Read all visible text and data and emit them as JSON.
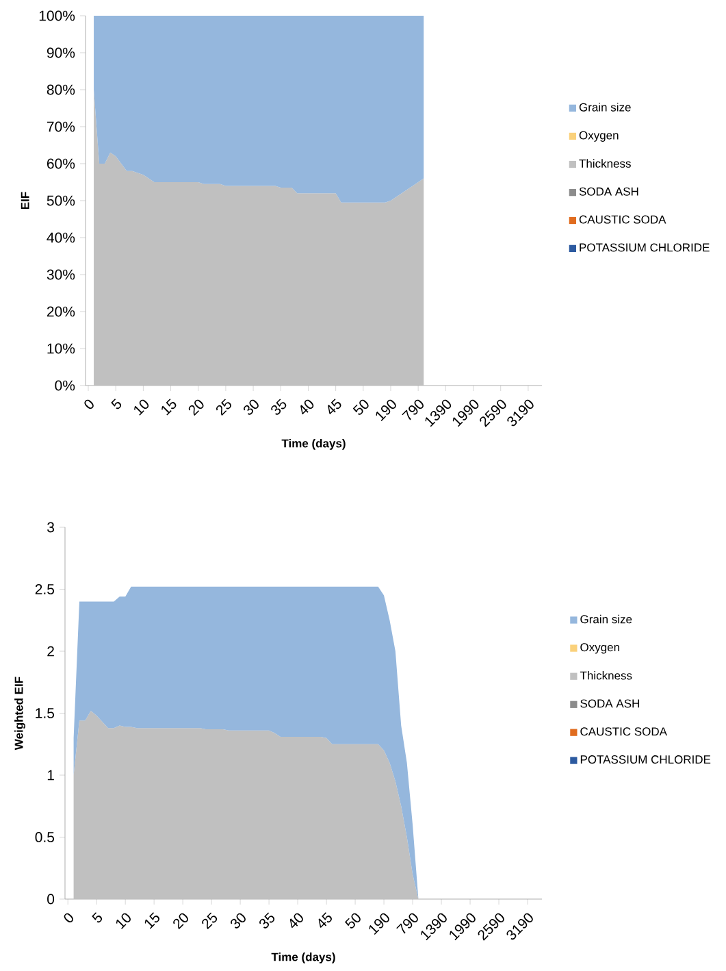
{
  "chart_data": [
    {
      "type": "area",
      "stacked": true,
      "xlabel": "Time (days)",
      "ylabel": "EIF",
      "legend": "right",
      "categories": [
        "0",
        null,
        null,
        null,
        null,
        "5",
        null,
        null,
        null,
        null,
        "10",
        null,
        null,
        null,
        null,
        "15",
        null,
        null,
        null,
        null,
        "20",
        null,
        null,
        null,
        null,
        "25",
        null,
        null,
        null,
        null,
        "30",
        null,
        null,
        null,
        null,
        "35",
        null,
        null,
        null,
        null,
        "40",
        null,
        null,
        null,
        null,
        "45",
        null,
        null,
        null,
        null,
        "50",
        null,
        null,
        null,
        null,
        "190",
        null,
        null,
        null,
        null,
        "790",
        null,
        null,
        null,
        null,
        "1390",
        null,
        null,
        null,
        null,
        "1990",
        null,
        null,
        null,
        null,
        "2590",
        null,
        null,
        null,
        null,
        "3190",
        null,
        null
      ],
      "ylim": [
        0,
        100
      ],
      "yticks": [
        {
          "value": 0,
          "label": "0%"
        },
        {
          "value": 10,
          "label": "10%"
        },
        {
          "value": 20,
          "label": "20%"
        },
        {
          "value": 30,
          "label": "30%"
        },
        {
          "value": 40,
          "label": "40%"
        },
        {
          "value": 50,
          "label": "50%"
        },
        {
          "value": 60,
          "label": "60%"
        },
        {
          "value": 70,
          "label": "70%"
        },
        {
          "value": 80,
          "label": "80%"
        },
        {
          "value": 90,
          "label": "90%"
        },
        {
          "value": 100,
          "label": "100%"
        }
      ],
      "series": [
        {
          "name": "POTASSIUM CHLORIDE",
          "color": "#2c5aa0",
          "values": [
            null,
            null,
            null,
            null,
            null,
            null,
            null,
            null,
            null,
            null,
            null,
            null,
            null,
            null,
            null,
            null,
            null,
            null,
            null,
            null,
            null,
            null,
            null,
            null,
            null,
            null,
            null,
            null,
            null,
            null,
            null,
            null,
            null,
            null,
            null,
            null,
            null,
            null,
            null,
            null,
            null,
            null,
            null,
            null,
            null,
            null,
            null,
            null,
            null,
            null,
            null,
            null,
            null,
            null,
            null,
            null,
            null,
            null,
            null,
            null,
            null,
            null,
            null,
            null,
            null,
            null,
            null,
            null,
            null,
            null,
            null,
            null,
            null,
            null,
            null,
            null,
            null,
            null,
            null,
            null,
            null,
            null,
            null
          ]
        },
        {
          "name": "CAUSTIC SODA",
          "color": "#e06c1f",
          "values": [
            null,
            null,
            null,
            null,
            null,
            null,
            null,
            null,
            null,
            null,
            null,
            null,
            null,
            null,
            null,
            null,
            null,
            null,
            null,
            null,
            null,
            null,
            null,
            null,
            null,
            null,
            null,
            null,
            null,
            null,
            null,
            null,
            null,
            null,
            null,
            null,
            null,
            null,
            null,
            null,
            null,
            null,
            null,
            null,
            null,
            null,
            null,
            null,
            null,
            null,
            null,
            null,
            null,
            null,
            null,
            null,
            null,
            null,
            null,
            null,
            null,
            null,
            null,
            null,
            null,
            null,
            null,
            null,
            null,
            null,
            null,
            null,
            null,
            null,
            null,
            null,
            null,
            null,
            null,
            null,
            null,
            null,
            null
          ]
        },
        {
          "name": "SODA ASH",
          "color": "#8c8c8c",
          "values": [
            null,
            null,
            null,
            null,
            null,
            null,
            null,
            null,
            null,
            null,
            null,
            null,
            null,
            null,
            null,
            null,
            null,
            null,
            null,
            null,
            null,
            null,
            null,
            null,
            null,
            null,
            null,
            null,
            null,
            null,
            null,
            null,
            null,
            null,
            null,
            null,
            null,
            null,
            null,
            null,
            null,
            null,
            null,
            null,
            null,
            null,
            null,
            null,
            null,
            null,
            null,
            null,
            null,
            null,
            null,
            null,
            null,
            null,
            null,
            null,
            null,
            null,
            null,
            null,
            null,
            null,
            null,
            null,
            null,
            null,
            null,
            null,
            null,
            null,
            null,
            null,
            null,
            null,
            null,
            null,
            null,
            null,
            null
          ]
        },
        {
          "name": "Thickness",
          "color": "#c0c0c0",
          "values": [
            null,
            80,
            60,
            60,
            63,
            62,
            60,
            58,
            58,
            57.5,
            57,
            56,
            55,
            55,
            55,
            55,
            55,
            55,
            55,
            55,
            55,
            54.5,
            54.5,
            54.5,
            54.5,
            54,
            54,
            54,
            54,
            54,
            54,
            54,
            54,
            54,
            54,
            53.5,
            53.5,
            53.5,
            52,
            52,
            52,
            52,
            52,
            52,
            52,
            52,
            49.5,
            49.5,
            49.5,
            49.5,
            49.5,
            49.5,
            49.5,
            49.5,
            49.5,
            50,
            51,
            52,
            53,
            54,
            55,
            56,
            null,
            null,
            null,
            null,
            null,
            null,
            null,
            null,
            null,
            null,
            null,
            null,
            null,
            null,
            null,
            null,
            null,
            null,
            null,
            null,
            null
          ]
        },
        {
          "name": "Oxygen",
          "color": "#fad17b",
          "values": [
            null,
            null,
            null,
            null,
            null,
            null,
            null,
            null,
            null,
            null,
            null,
            null,
            null,
            null,
            null,
            null,
            null,
            null,
            null,
            null,
            null,
            null,
            null,
            null,
            null,
            null,
            null,
            null,
            null,
            null,
            null,
            null,
            null,
            null,
            null,
            null,
            null,
            null,
            null,
            null,
            null,
            null,
            null,
            null,
            null,
            null,
            null,
            null,
            null,
            null,
            null,
            null,
            null,
            null,
            null,
            null,
            null,
            null,
            null,
            null,
            null,
            null,
            null,
            null,
            null,
            null,
            null,
            null,
            null,
            null,
            null,
            null,
            null,
            null,
            null,
            null,
            null,
            null,
            null,
            null,
            null,
            null,
            null
          ]
        },
        {
          "name": "Grain size",
          "color": "#95b7dd",
          "values": [
            null,
            20,
            40,
            40,
            37,
            38,
            40,
            42,
            42,
            42.5,
            43,
            44,
            45,
            45,
            45,
            45,
            45,
            45,
            45,
            45,
            45,
            45.5,
            45.5,
            45.5,
            45.5,
            46,
            46,
            46,
            46,
            46,
            46,
            46,
            46,
            46,
            46,
            46.5,
            46.5,
            46.5,
            48,
            48,
            48,
            48,
            48,
            48,
            48,
            48,
            50.5,
            50.5,
            50.5,
            50.5,
            50.5,
            50.5,
            50.5,
            50.5,
            50.5,
            50,
            49,
            48,
            47,
            46,
            45,
            44,
            null,
            null,
            null,
            null,
            null,
            null,
            null,
            null,
            null,
            null,
            null,
            null,
            null,
            null,
            null,
            null,
            null,
            null,
            null,
            null,
            null
          ]
        }
      ]
    },
    {
      "type": "area",
      "stacked": true,
      "xlabel": "Time (days)",
      "ylabel": "Weighted EIF",
      "legend": "right",
      "categories": [
        "0",
        null,
        null,
        null,
        null,
        "5",
        null,
        null,
        null,
        null,
        "10",
        null,
        null,
        null,
        null,
        "15",
        null,
        null,
        null,
        null,
        "20",
        null,
        null,
        null,
        null,
        "25",
        null,
        null,
        null,
        null,
        "30",
        null,
        null,
        null,
        null,
        "35",
        null,
        null,
        null,
        null,
        "40",
        null,
        null,
        null,
        null,
        "45",
        null,
        null,
        null,
        null,
        "50",
        null,
        null,
        null,
        null,
        "190",
        null,
        null,
        null,
        null,
        "790",
        null,
        null,
        null,
        null,
        "1390",
        null,
        null,
        null,
        null,
        "1990",
        null,
        null,
        null,
        null,
        "2590",
        null,
        null,
        null,
        null,
        "3190",
        null,
        null
      ],
      "ylim": [
        0,
        3
      ],
      "yticks": [
        0,
        0.5,
        1,
        1.5,
        2,
        2.5,
        3
      ],
      "series": [
        {
          "name": "POTASSIUM CHLORIDE",
          "color": "#2c5aa0",
          "values": [
            null,
            null,
            null,
            null,
            null,
            null,
            null,
            null,
            null,
            null,
            null,
            null,
            null,
            null,
            null,
            null,
            null,
            null,
            null,
            null,
            null,
            null,
            null,
            null,
            null,
            null,
            null,
            null,
            null,
            null,
            null,
            null,
            null,
            null,
            null,
            null,
            null,
            null,
            null,
            null,
            null,
            null,
            null,
            null,
            null,
            null,
            null,
            null,
            null,
            null,
            null,
            null,
            null,
            null,
            null,
            null,
            null,
            null,
            null,
            null,
            null,
            null,
            null,
            null,
            null,
            null,
            null,
            null,
            null,
            null,
            null,
            null,
            null,
            null,
            null,
            null,
            null,
            null,
            null,
            null,
            null,
            null,
            null
          ]
        },
        {
          "name": "CAUSTIC SODA",
          "color": "#e06c1f",
          "values": [
            null,
            null,
            null,
            null,
            null,
            null,
            null,
            null,
            null,
            null,
            null,
            null,
            null,
            null,
            null,
            null,
            null,
            null,
            null,
            null,
            null,
            null,
            null,
            null,
            null,
            null,
            null,
            null,
            null,
            null,
            null,
            null,
            null,
            null,
            null,
            null,
            null,
            null,
            null,
            null,
            null,
            null,
            null,
            null,
            null,
            null,
            null,
            null,
            null,
            null,
            null,
            null,
            null,
            null,
            null,
            null,
            null,
            null,
            null,
            null,
            null,
            null,
            null,
            null,
            null,
            null,
            null,
            null,
            null,
            null,
            null,
            null,
            null,
            null,
            null,
            null,
            null,
            null,
            null,
            null,
            null,
            null,
            null
          ]
        },
        {
          "name": "SODA ASH",
          "color": "#8c8c8c",
          "values": [
            null,
            null,
            null,
            null,
            null,
            null,
            null,
            null,
            null,
            null,
            null,
            null,
            null,
            null,
            null,
            null,
            null,
            null,
            null,
            null,
            null,
            null,
            null,
            null,
            null,
            null,
            null,
            null,
            null,
            null,
            null,
            null,
            null,
            null,
            null,
            null,
            null,
            null,
            null,
            null,
            null,
            null,
            null,
            null,
            null,
            null,
            null,
            null,
            null,
            null,
            null,
            null,
            null,
            null,
            null,
            null,
            null,
            null,
            null,
            null,
            null,
            null,
            null,
            null,
            null,
            null,
            null,
            null,
            null,
            null,
            null,
            null,
            null,
            null,
            null,
            null,
            null,
            null,
            null,
            null,
            null,
            null,
            null
          ]
        },
        {
          "name": "Thickness",
          "color": "#c0c0c0",
          "values": [
            null,
            1.0,
            1.44,
            1.44,
            1.52,
            1.48,
            1.43,
            1.38,
            1.38,
            1.4,
            1.39,
            1.39,
            1.38,
            1.38,
            1.38,
            1.38,
            1.38,
            1.38,
            1.38,
            1.38,
            1.38,
            1.38,
            1.38,
            1.38,
            1.37,
            1.37,
            1.37,
            1.37,
            1.36,
            1.36,
            1.36,
            1.36,
            1.36,
            1.36,
            1.36,
            1.36,
            1.34,
            1.31,
            1.31,
            1.31,
            1.31,
            1.31,
            1.31,
            1.31,
            1.31,
            1.3,
            1.25,
            1.25,
            1.25,
            1.25,
            1.25,
            1.25,
            1.25,
            1.25,
            1.25,
            1.2,
            1.1,
            0.95,
            0.75,
            0.5,
            0.2,
            0,
            null,
            null,
            null,
            null,
            null,
            null,
            null,
            null,
            null,
            null,
            null,
            null,
            null,
            null,
            null,
            null,
            null,
            null,
            null,
            null,
            null
          ]
        },
        {
          "name": "Oxygen",
          "color": "#fad17b",
          "values": [
            null,
            null,
            null,
            null,
            null,
            null,
            null,
            null,
            null,
            null,
            null,
            null,
            null,
            null,
            null,
            null,
            null,
            null,
            null,
            null,
            null,
            null,
            null,
            null,
            null,
            null,
            null,
            null,
            null,
            null,
            null,
            null,
            null,
            null,
            null,
            null,
            null,
            null,
            null,
            null,
            null,
            null,
            null,
            null,
            null,
            null,
            null,
            null,
            null,
            null,
            null,
            null,
            null,
            null,
            null,
            null,
            null,
            null,
            null,
            null,
            null,
            null,
            null,
            null,
            null,
            null,
            null,
            null,
            null,
            null,
            null,
            null,
            null,
            null,
            null,
            null,
            null,
            null,
            null,
            null,
            null,
            null,
            null
          ]
        },
        {
          "name": "Grain size",
          "color": "#95b7dd",
          "values": [
            null,
            0.3,
            0.96,
            0.96,
            0.88,
            0.92,
            0.97,
            1.02,
            1.02,
            1.04,
            1.05,
            1.13,
            1.14,
            1.14,
            1.14,
            1.14,
            1.14,
            1.14,
            1.14,
            1.14,
            1.14,
            1.14,
            1.14,
            1.14,
            1.15,
            1.15,
            1.15,
            1.15,
            1.16,
            1.16,
            1.16,
            1.16,
            1.16,
            1.16,
            1.16,
            1.16,
            1.18,
            1.21,
            1.21,
            1.21,
            1.21,
            1.21,
            1.21,
            1.21,
            1.21,
            1.22,
            1.27,
            1.27,
            1.27,
            1.27,
            1.27,
            1.27,
            1.27,
            1.27,
            1.27,
            1.25,
            1.15,
            1.05,
            0.65,
            0.6,
            0.4,
            0,
            null,
            null,
            null,
            null,
            null,
            null,
            null,
            null,
            null,
            null,
            null,
            null,
            null,
            null,
            null,
            null,
            null,
            null,
            null,
            null,
            null
          ]
        }
      ]
    }
  ]
}
